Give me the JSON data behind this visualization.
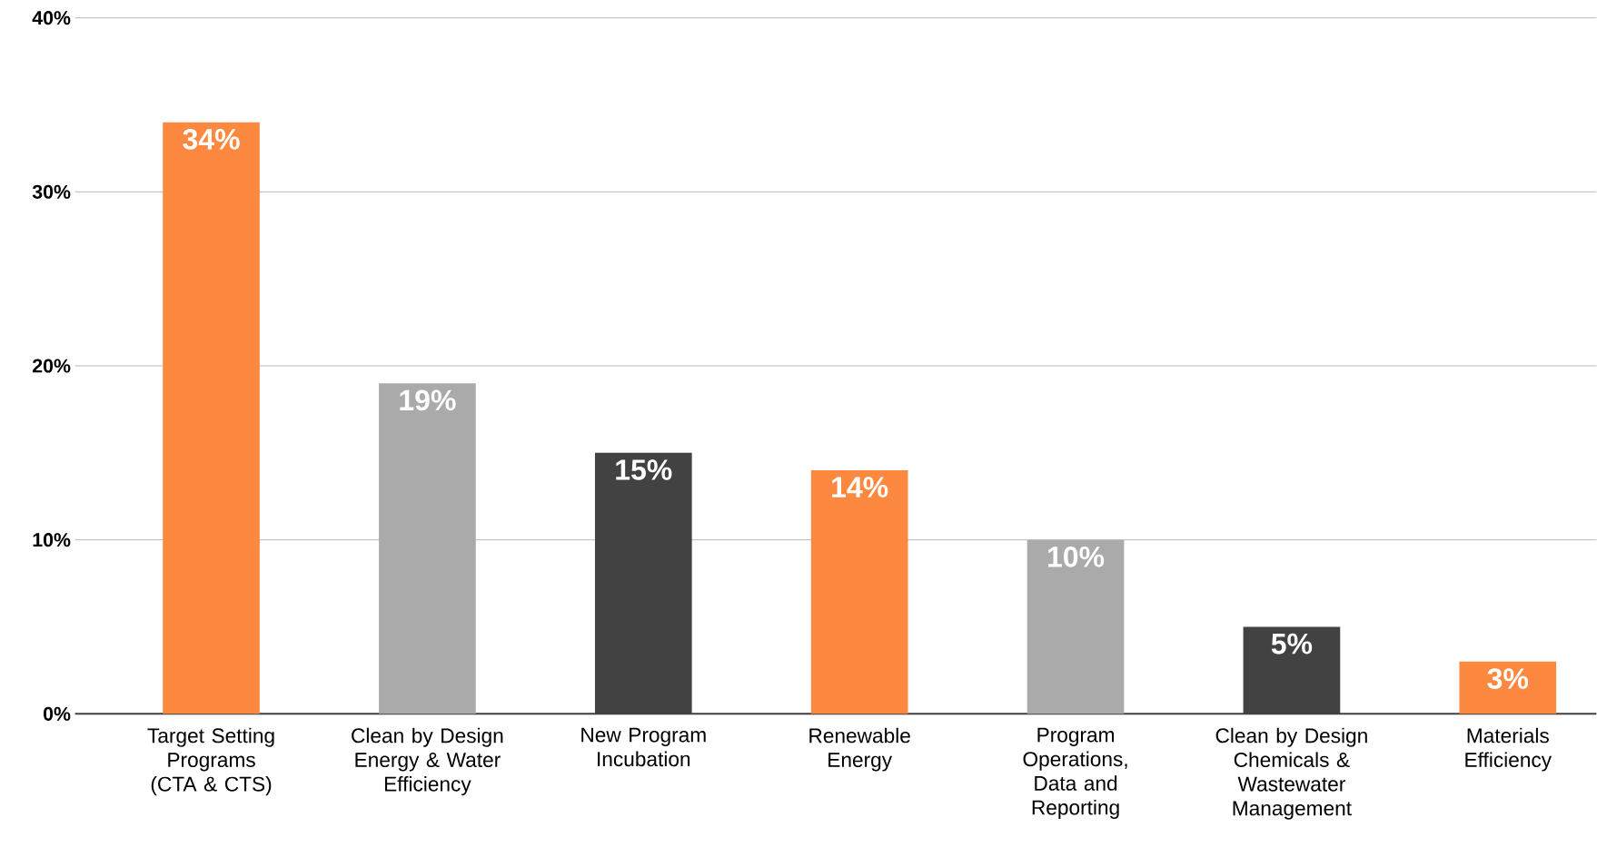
{
  "chart_data": {
    "type": "bar",
    "categories": [
      "Target Setting Programs (CTA & CTS)",
      "Clean by Design Energy & Water Efficiency",
      "New Program Incubation",
      "Renewable Energy",
      "Program Operations, Data and Reporting",
      "Clean by Design Chemicals & Wastewater Management",
      "Materials Efficiency"
    ],
    "values": [
      34,
      19,
      15,
      14,
      10,
      5,
      3
    ],
    "value_labels": [
      "34%",
      "19%",
      "15%",
      "14%",
      "10%",
      "5%",
      "3%"
    ],
    "colors": [
      "#fd8940",
      "#aaaaaa",
      "#424242",
      "#fd8940",
      "#aaaaaa",
      "#424242",
      "#fd8940"
    ],
    "ylim": [
      0,
      40
    ],
    "yticks": [
      {
        "value": 0,
        "label": "0%"
      },
      {
        "value": 10,
        "label": "10%"
      },
      {
        "value": 20,
        "label": "20%"
      },
      {
        "value": 30,
        "label": "30%"
      },
      {
        "value": 40,
        "label": "40%"
      }
    ],
    "grid": "y"
  }
}
